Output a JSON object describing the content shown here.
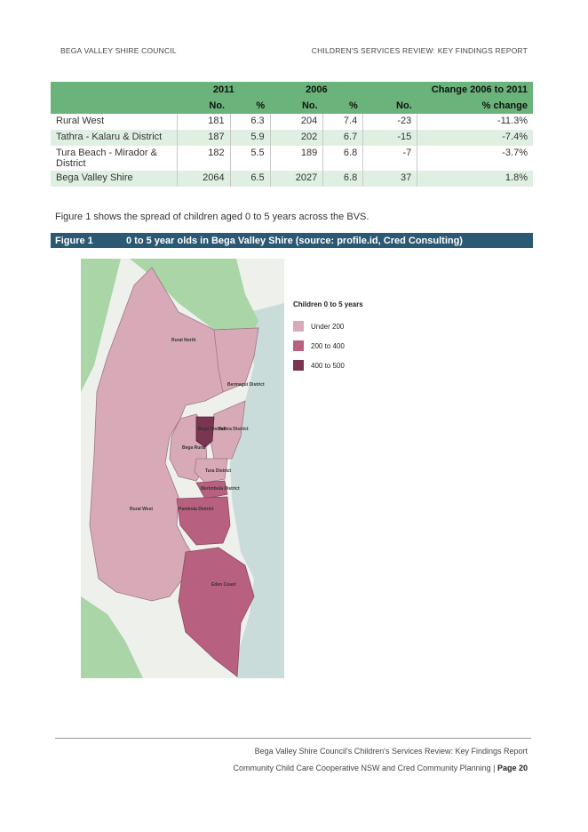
{
  "header": {
    "left": "BEGA VALLEY SHIRE COUNCIL",
    "right": "CHILDREN'S SERVICES REVIEW: KEY FINDINGS REPORT"
  },
  "table": {
    "group_headers": [
      "2011",
      "2006",
      "Change 2006 to 2011"
    ],
    "sub_headers": [
      "No.",
      "%",
      "No.",
      "%",
      "No.",
      "% change"
    ],
    "rows": [
      {
        "area": "Rural West",
        "n2011": "181",
        "p2011": "6.3",
        "n2006": "204",
        "p2006": "7.4",
        "chg": "-23",
        "pchg": "-11.3%"
      },
      {
        "area": "Tathra - Kalaru & District",
        "n2011": "187",
        "p2011": "5.9",
        "n2006": "202",
        "p2006": "6.7",
        "chg": "-15",
        "pchg": "-7.4%"
      },
      {
        "area": "Tura Beach - Mirador & District",
        "n2011": "182",
        "p2011": "5.5",
        "n2006": "189",
        "p2006": "6.8",
        "chg": "-7",
        "pchg": "-3.7%"
      },
      {
        "area": "Bega Valley Shire",
        "n2011": "2064",
        "p2011": "6.5",
        "n2006": "2027",
        "p2006": "6.8",
        "chg": "37",
        "pchg": "1.8%"
      }
    ]
  },
  "paragraph": "Figure 1 shows the spread of children aged 0 to 5 years across the BVS.",
  "figure": {
    "number": "Figure 1",
    "caption": "0 to 5 year olds in Bega Valley Shire (source: profile.id, Cred Consulting)"
  },
  "map": {
    "labels": [
      "Rural North",
      "Bermagui District",
      "Bega District",
      "Tathra District",
      "Bega Rural",
      "Tura District",
      "Merimbula District",
      "Rural West",
      "Pambula District",
      "Eden Coast"
    ],
    "legend": {
      "title": "Children 0 to 5 years",
      "items": [
        {
          "label": "Under 200",
          "color": "#d8aab8"
        },
        {
          "label": "200 to 400",
          "color": "#b8607f"
        },
        {
          "label": "400 to 500",
          "color": "#7a3550"
        }
      ]
    }
  },
  "footer": {
    "line1": "Bega Valley Shire Council's Children's Services Review: Key Findings Report",
    "line2": "Community Child Care Cooperative NSW and Cred Community Planning",
    "page": "Page 20"
  }
}
